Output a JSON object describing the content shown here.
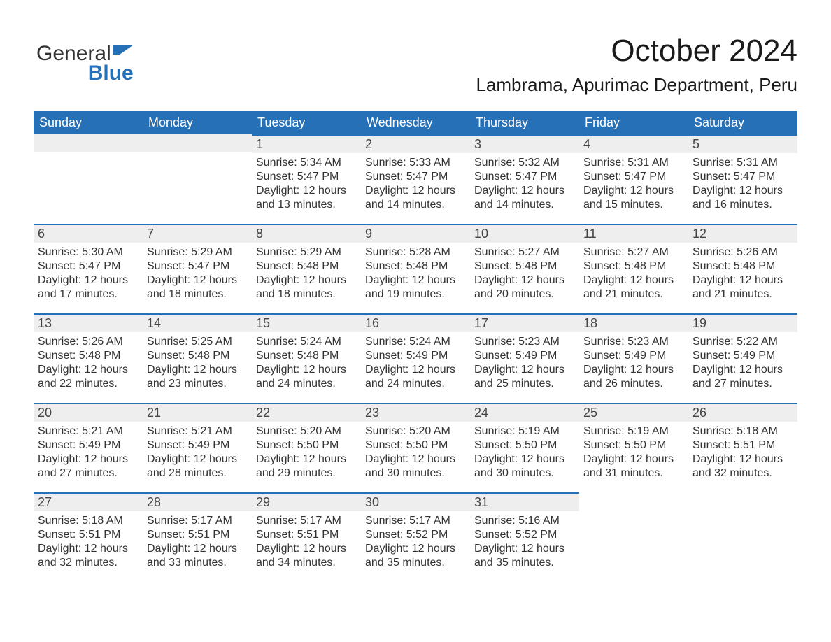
{
  "logo": {
    "word1": "General",
    "word2": "Blue",
    "icon_color": "#2670b8"
  },
  "header": {
    "month_title": "October 2024",
    "location": "Lambrama, Apurimac Department, Peru"
  },
  "colors": {
    "header_bg": "#2670b8",
    "header_text": "#ffffff",
    "daynum_bg": "#eeeeee",
    "body_bg": "#ffffff",
    "text": "#333333",
    "accent": "#2670b8"
  },
  "calendar": {
    "day_names": [
      "Sunday",
      "Monday",
      "Tuesday",
      "Wednesday",
      "Thursday",
      "Friday",
      "Saturday"
    ],
    "weeks": [
      [
        {
          "day": "",
          "lines": []
        },
        {
          "day": "",
          "lines": []
        },
        {
          "day": "1",
          "lines": [
            "Sunrise: 5:34 AM",
            "Sunset: 5:47 PM",
            "Daylight: 12 hours and 13 minutes."
          ]
        },
        {
          "day": "2",
          "lines": [
            "Sunrise: 5:33 AM",
            "Sunset: 5:47 PM",
            "Daylight: 12 hours and 14 minutes."
          ]
        },
        {
          "day": "3",
          "lines": [
            "Sunrise: 5:32 AM",
            "Sunset: 5:47 PM",
            "Daylight: 12 hours and 14 minutes."
          ]
        },
        {
          "day": "4",
          "lines": [
            "Sunrise: 5:31 AM",
            "Sunset: 5:47 PM",
            "Daylight: 12 hours and 15 minutes."
          ]
        },
        {
          "day": "5",
          "lines": [
            "Sunrise: 5:31 AM",
            "Sunset: 5:47 PM",
            "Daylight: 12 hours and 16 minutes."
          ]
        }
      ],
      [
        {
          "day": "6",
          "lines": [
            "Sunrise: 5:30 AM",
            "Sunset: 5:47 PM",
            "Daylight: 12 hours and 17 minutes."
          ]
        },
        {
          "day": "7",
          "lines": [
            "Sunrise: 5:29 AM",
            "Sunset: 5:47 PM",
            "Daylight: 12 hours and 18 minutes."
          ]
        },
        {
          "day": "8",
          "lines": [
            "Sunrise: 5:29 AM",
            "Sunset: 5:48 PM",
            "Daylight: 12 hours and 18 minutes."
          ]
        },
        {
          "day": "9",
          "lines": [
            "Sunrise: 5:28 AM",
            "Sunset: 5:48 PM",
            "Daylight: 12 hours and 19 minutes."
          ]
        },
        {
          "day": "10",
          "lines": [
            "Sunrise: 5:27 AM",
            "Sunset: 5:48 PM",
            "Daylight: 12 hours and 20 minutes."
          ]
        },
        {
          "day": "11",
          "lines": [
            "Sunrise: 5:27 AM",
            "Sunset: 5:48 PM",
            "Daylight: 12 hours and 21 minutes."
          ]
        },
        {
          "day": "12",
          "lines": [
            "Sunrise: 5:26 AM",
            "Sunset: 5:48 PM",
            "Daylight: 12 hours and 21 minutes."
          ]
        }
      ],
      [
        {
          "day": "13",
          "lines": [
            "Sunrise: 5:26 AM",
            "Sunset: 5:48 PM",
            "Daylight: 12 hours and 22 minutes."
          ]
        },
        {
          "day": "14",
          "lines": [
            "Sunrise: 5:25 AM",
            "Sunset: 5:48 PM",
            "Daylight: 12 hours and 23 minutes."
          ]
        },
        {
          "day": "15",
          "lines": [
            "Sunrise: 5:24 AM",
            "Sunset: 5:48 PM",
            "Daylight: 12 hours and 24 minutes."
          ]
        },
        {
          "day": "16",
          "lines": [
            "Sunrise: 5:24 AM",
            "Sunset: 5:49 PM",
            "Daylight: 12 hours and 24 minutes."
          ]
        },
        {
          "day": "17",
          "lines": [
            "Sunrise: 5:23 AM",
            "Sunset: 5:49 PM",
            "Daylight: 12 hours and 25 minutes."
          ]
        },
        {
          "day": "18",
          "lines": [
            "Sunrise: 5:23 AM",
            "Sunset: 5:49 PM",
            "Daylight: 12 hours and 26 minutes."
          ]
        },
        {
          "day": "19",
          "lines": [
            "Sunrise: 5:22 AM",
            "Sunset: 5:49 PM",
            "Daylight: 12 hours and 27 minutes."
          ]
        }
      ],
      [
        {
          "day": "20",
          "lines": [
            "Sunrise: 5:21 AM",
            "Sunset: 5:49 PM",
            "Daylight: 12 hours and 27 minutes."
          ]
        },
        {
          "day": "21",
          "lines": [
            "Sunrise: 5:21 AM",
            "Sunset: 5:49 PM",
            "Daylight: 12 hours and 28 minutes."
          ]
        },
        {
          "day": "22",
          "lines": [
            "Sunrise: 5:20 AM",
            "Sunset: 5:50 PM",
            "Daylight: 12 hours and 29 minutes."
          ]
        },
        {
          "day": "23",
          "lines": [
            "Sunrise: 5:20 AM",
            "Sunset: 5:50 PM",
            "Daylight: 12 hours and 30 minutes."
          ]
        },
        {
          "day": "24",
          "lines": [
            "Sunrise: 5:19 AM",
            "Sunset: 5:50 PM",
            "Daylight: 12 hours and 30 minutes."
          ]
        },
        {
          "day": "25",
          "lines": [
            "Sunrise: 5:19 AM",
            "Sunset: 5:50 PM",
            "Daylight: 12 hours and 31 minutes."
          ]
        },
        {
          "day": "26",
          "lines": [
            "Sunrise: 5:18 AM",
            "Sunset: 5:51 PM",
            "Daylight: 12 hours and 32 minutes."
          ]
        }
      ],
      [
        {
          "day": "27",
          "lines": [
            "Sunrise: 5:18 AM",
            "Sunset: 5:51 PM",
            "Daylight: 12 hours and 32 minutes."
          ]
        },
        {
          "day": "28",
          "lines": [
            "Sunrise: 5:17 AM",
            "Sunset: 5:51 PM",
            "Daylight: 12 hours and 33 minutes."
          ]
        },
        {
          "day": "29",
          "lines": [
            "Sunrise: 5:17 AM",
            "Sunset: 5:51 PM",
            "Daylight: 12 hours and 34 minutes."
          ]
        },
        {
          "day": "30",
          "lines": [
            "Sunrise: 5:17 AM",
            "Sunset: 5:52 PM",
            "Daylight: 12 hours and 35 minutes."
          ]
        },
        {
          "day": "31",
          "lines": [
            "Sunrise: 5:16 AM",
            "Sunset: 5:52 PM",
            "Daylight: 12 hours and 35 minutes."
          ]
        },
        {
          "day": "",
          "lines": []
        },
        {
          "day": "",
          "lines": []
        }
      ]
    ]
  }
}
